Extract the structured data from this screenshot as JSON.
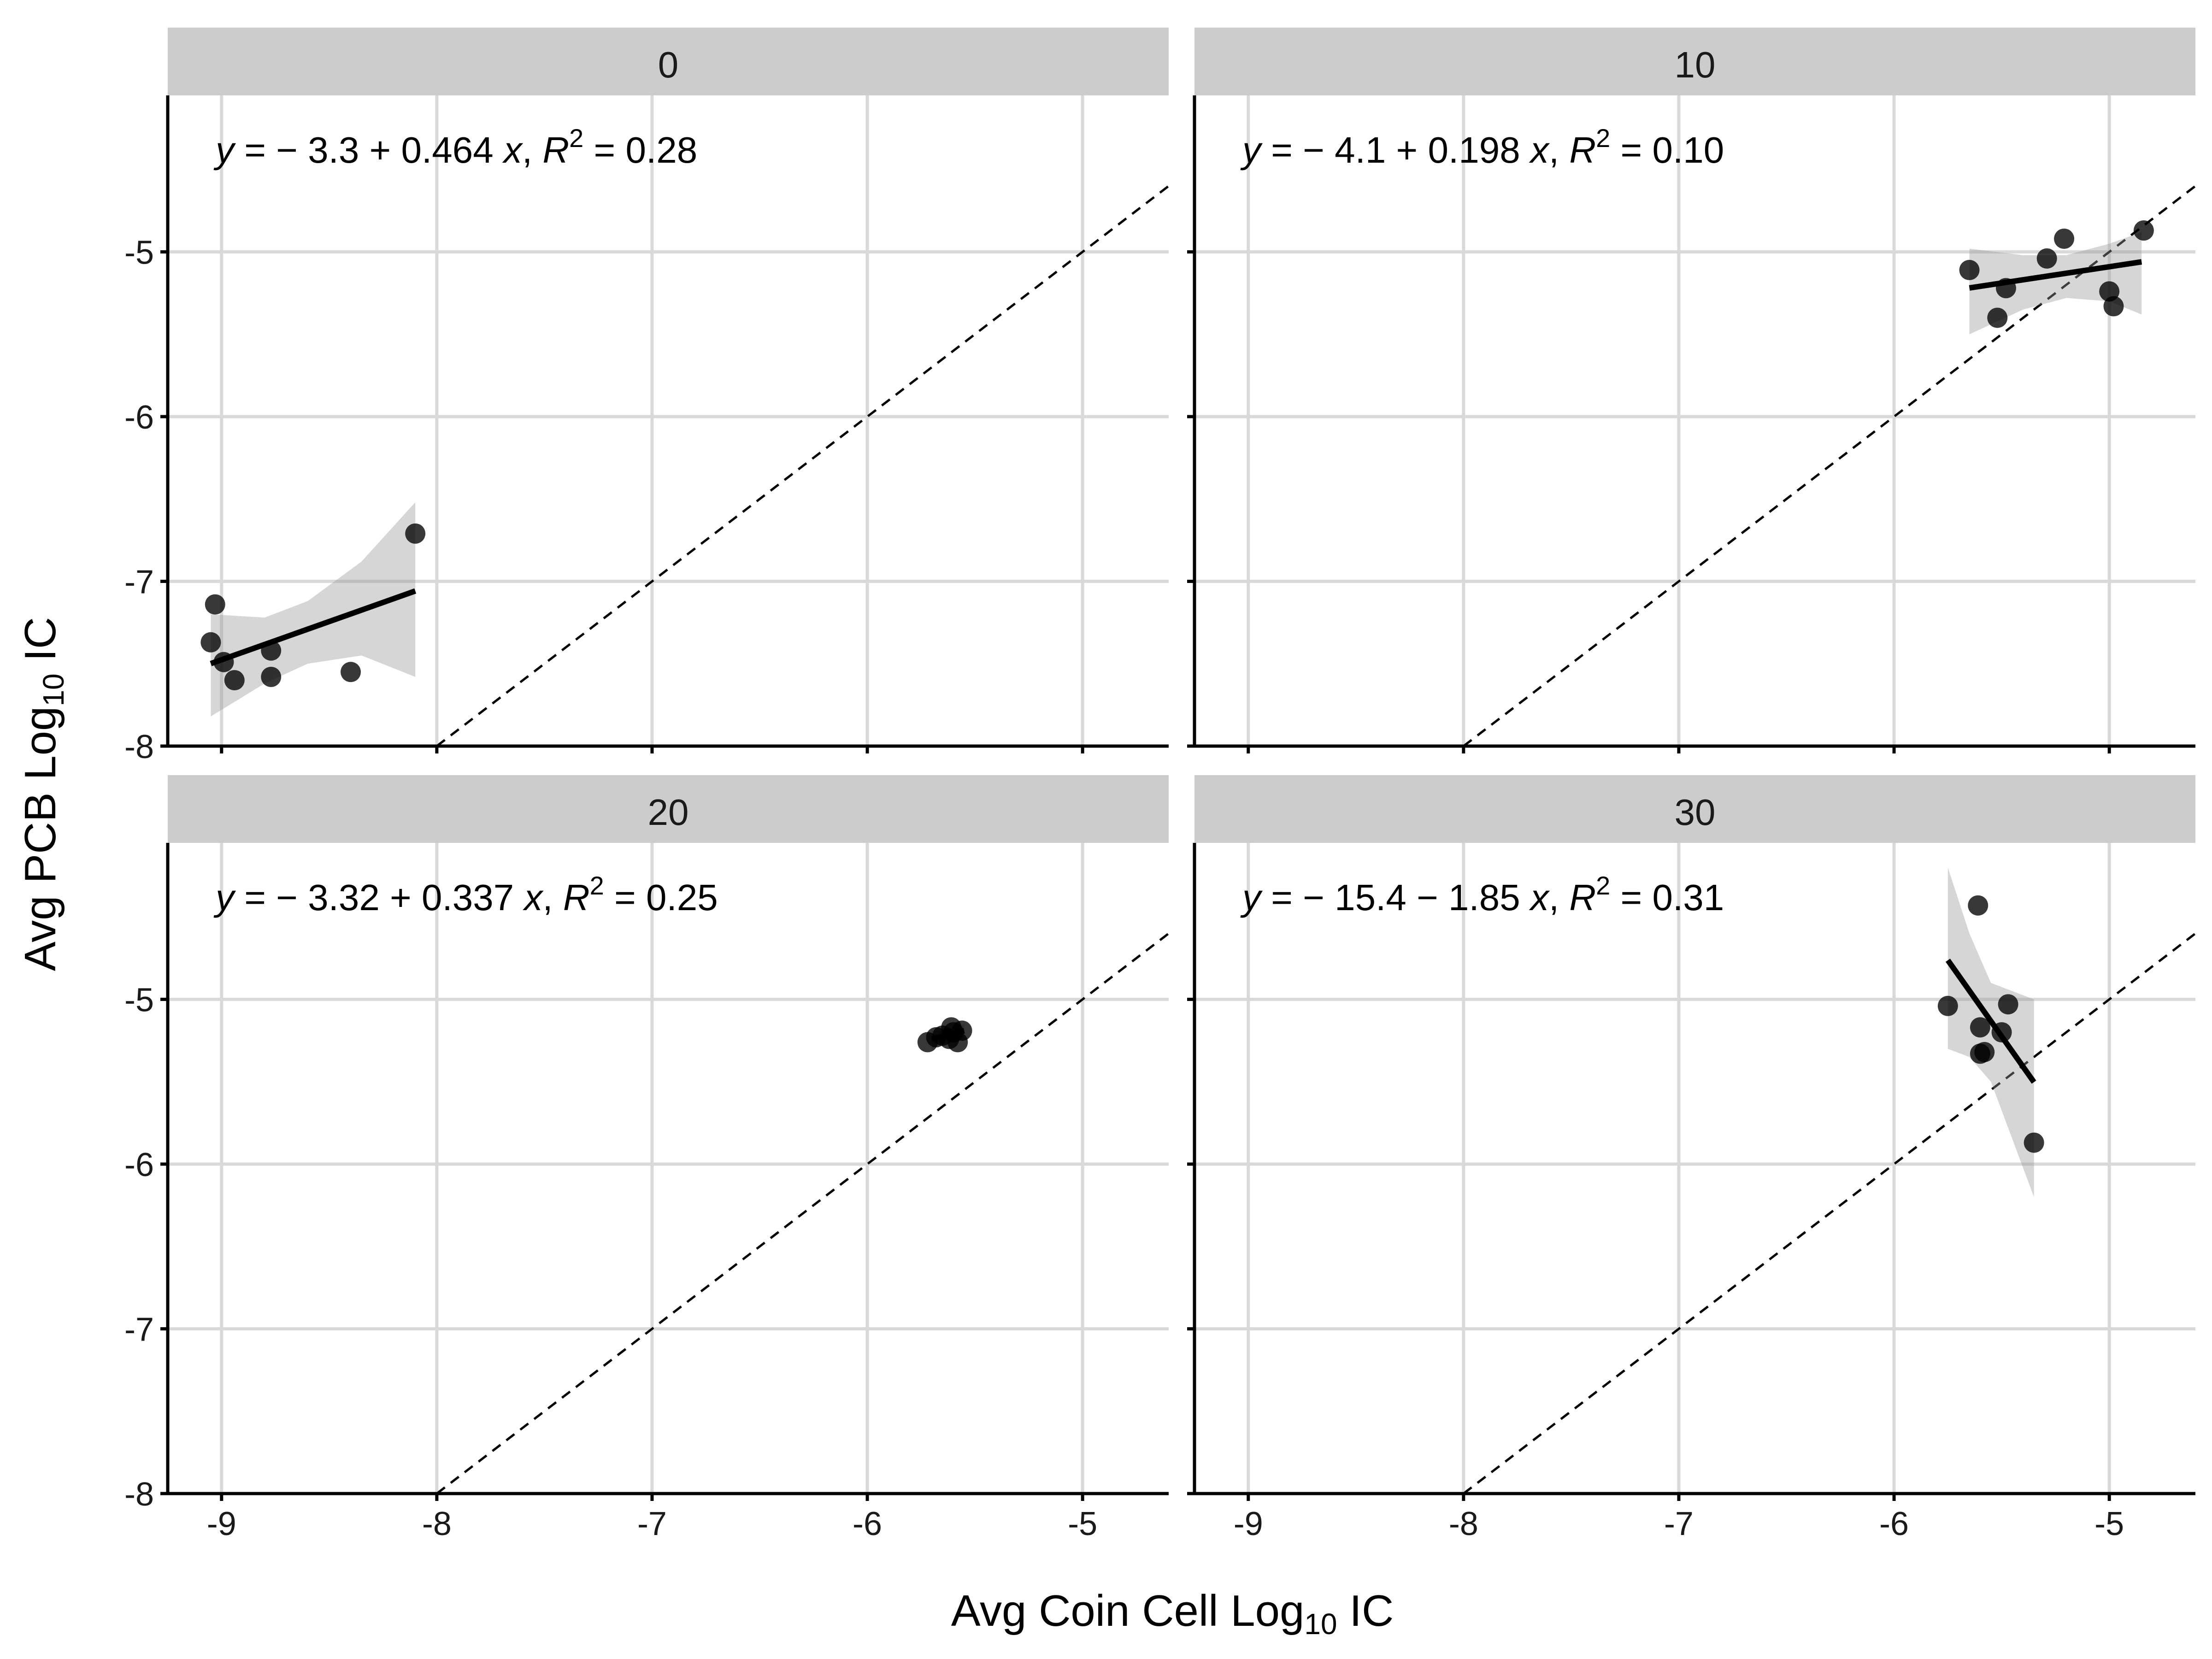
{
  "chart_data": {
    "type": "scatter",
    "xlabel": "Avg Coin Cell Log",
    "xlabel_sub": "10",
    "xlabel_suffix": " IC",
    "ylabel": "Avg PCB Log",
    "ylabel_sub": "10",
    "ylabel_suffix": " IC",
    "xlim": [
      -9.25,
      -4.6
    ],
    "ylim": [
      -8,
      -4.05
    ],
    "x_ticks": [
      -9,
      -8,
      -7,
      -6,
      -5
    ],
    "y_ticks": [
      -8,
      -7,
      -6,
      -5
    ],
    "identity_line": true,
    "grid": true,
    "panels": [
      {
        "strip": "0",
        "equation": {
          "lhs": "y",
          "body": " = − 3.3 + 0.464 ",
          "x": "x",
          "sep": ", ",
          "r": "R",
          "sup": "2",
          "rhs": " = 0.28"
        },
        "fit": {
          "x_range": [
            -9.05,
            -8.1
          ],
          "intercept": -3.3,
          "slope": 0.464
        },
        "band": {
          "upper": [
            [
              -9.05,
              -7.2
            ],
            [
              -8.8,
              -7.22
            ],
            [
              -8.6,
              -7.12
            ],
            [
              -8.35,
              -6.88
            ],
            [
              -8.1,
              -6.52
            ]
          ],
          "lower": [
            [
              -9.05,
              -7.82
            ],
            [
              -8.8,
              -7.62
            ],
            [
              -8.6,
              -7.5
            ],
            [
              -8.35,
              -7.45
            ],
            [
              -8.1,
              -7.58
            ]
          ]
        },
        "points": [
          [
            -9.05,
            -7.37
          ],
          [
            -9.03,
            -7.14
          ],
          [
            -8.99,
            -7.49
          ],
          [
            -8.94,
            -7.6
          ],
          [
            -8.77,
            -7.42
          ],
          [
            -8.77,
            -7.58
          ],
          [
            -8.4,
            -7.55
          ],
          [
            -8.1,
            -6.71
          ]
        ]
      },
      {
        "strip": "10",
        "equation": {
          "lhs": "y",
          "body": " = − 4.1 + 0.198 ",
          "x": "x",
          "sep": ", ",
          "r": "R",
          "sup": "2",
          "rhs": " = 0.10"
        },
        "fit": {
          "x_range": [
            -5.65,
            -4.85
          ],
          "intercept": -4.1,
          "slope": 0.198
        },
        "band": {
          "upper": [
            [
              -5.65,
              -4.98
            ],
            [
              -5.4,
              -5.02
            ],
            [
              -5.2,
              -5.02
            ],
            [
              -5.0,
              -4.95
            ],
            [
              -4.85,
              -4.88
            ]
          ],
          "lower": [
            [
              -5.65,
              -5.5
            ],
            [
              -5.4,
              -5.35
            ],
            [
              -5.2,
              -5.28
            ],
            [
              -5.0,
              -5.3
            ],
            [
              -4.85,
              -5.38
            ]
          ]
        },
        "points": [
          [
            -5.65,
            -5.11
          ],
          [
            -5.52,
            -5.4
          ],
          [
            -5.48,
            -5.22
          ],
          [
            -5.29,
            -5.04
          ],
          [
            -5.21,
            -4.92
          ],
          [
            -5.0,
            -5.24
          ],
          [
            -4.98,
            -5.33
          ],
          [
            -4.84,
            -4.87
          ]
        ]
      },
      {
        "strip": "20",
        "equation": {
          "lhs": "y",
          "body": " = − 3.32 + 0.337 ",
          "x": "x",
          "sep": ", ",
          "r": "R",
          "sup": "2",
          "rhs": " = 0.25"
        },
        "fit": {
          "x_range": [
            -5.7,
            -5.55
          ],
          "intercept": -3.32,
          "slope": 0.337
        },
        "band": {
          "upper": [
            [
              -5.7,
              -5.19
            ],
            [
              -5.62,
              -5.19
            ],
            [
              -5.55,
              -5.15
            ]
          ],
          "lower": [
            [
              -5.7,
              -5.3
            ],
            [
              -5.62,
              -5.25
            ],
            [
              -5.55,
              -5.24
            ]
          ]
        },
        "points": [
          [
            -5.72,
            -5.26
          ],
          [
            -5.68,
            -5.23
          ],
          [
            -5.65,
            -5.22
          ],
          [
            -5.62,
            -5.24
          ],
          [
            -5.61,
            -5.17
          ],
          [
            -5.6,
            -5.2
          ],
          [
            -5.58,
            -5.26
          ],
          [
            -5.56,
            -5.19
          ]
        ]
      },
      {
        "strip": "30",
        "equation": {
          "lhs": "y",
          "body": " = − 15.4 − 1.85 ",
          "x": "x",
          "sep": ", ",
          "r": "R",
          "sup": "2",
          "rhs": " = 0.31"
        },
        "fit": {
          "x_range": [
            -5.75,
            -5.35
          ],
          "intercept": -15.4,
          "slope": -1.85
        },
        "band": {
          "upper": [
            [
              -5.75,
              -4.2
            ],
            [
              -5.65,
              -4.6
            ],
            [
              -5.55,
              -4.9
            ],
            [
              -5.45,
              -4.95
            ],
            [
              -5.35,
              -5.0
            ]
          ],
          "lower": [
            [
              -5.75,
              -5.3
            ],
            [
              -5.65,
              -5.35
            ],
            [
              -5.55,
              -5.5
            ],
            [
              -5.45,
              -5.85
            ],
            [
              -5.35,
              -6.2
            ]
          ]
        },
        "points": [
          [
            -5.75,
            -5.04
          ],
          [
            -5.61,
            -4.43
          ],
          [
            -5.6,
            -5.17
          ],
          [
            -5.6,
            -5.33
          ],
          [
            -5.58,
            -5.32
          ],
          [
            -5.5,
            -5.2
          ],
          [
            -5.47,
            -5.03
          ],
          [
            -5.35,
            -5.87
          ]
        ]
      }
    ]
  }
}
